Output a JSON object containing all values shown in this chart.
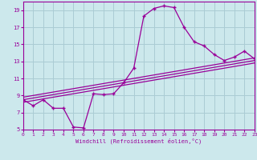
{
  "xlabel": "Windchill (Refroidissement éolien,°C)",
  "bg_color": "#cce8ec",
  "grid_color": "#aaccd4",
  "line_color": "#990099",
  "xmin": 0,
  "xmax": 23,
  "ymin": 5,
  "ymax": 20,
  "yticks": [
    5,
    7,
    9,
    11,
    13,
    15,
    17,
    19
  ],
  "xticks": [
    0,
    1,
    2,
    3,
    4,
    5,
    6,
    7,
    8,
    9,
    10,
    11,
    12,
    13,
    14,
    15,
    16,
    17,
    18,
    19,
    20,
    21,
    22,
    23
  ],
  "curve1_x": [
    0,
    1,
    2,
    3,
    4,
    5,
    6,
    7,
    8,
    9,
    10,
    11,
    12,
    13,
    14,
    15,
    16,
    17,
    18,
    19,
    20,
    21,
    22,
    23
  ],
  "curve1_y": [
    8.5,
    7.8,
    8.5,
    7.5,
    7.5,
    5.3,
    5.2,
    9.2,
    9.1,
    9.2,
    10.5,
    12.2,
    18.3,
    19.2,
    19.5,
    19.3,
    17.0,
    15.3,
    14.8,
    13.8,
    13.1,
    13.5,
    14.2,
    13.3
  ],
  "line2_x": [
    0,
    23
  ],
  "line2_y": [
    8.2,
    12.8
  ],
  "line3_x": [
    0,
    23
  ],
  "line3_y": [
    8.5,
    13.1
  ],
  "line4_x": [
    0,
    23
  ],
  "line4_y": [
    8.8,
    13.4
  ]
}
